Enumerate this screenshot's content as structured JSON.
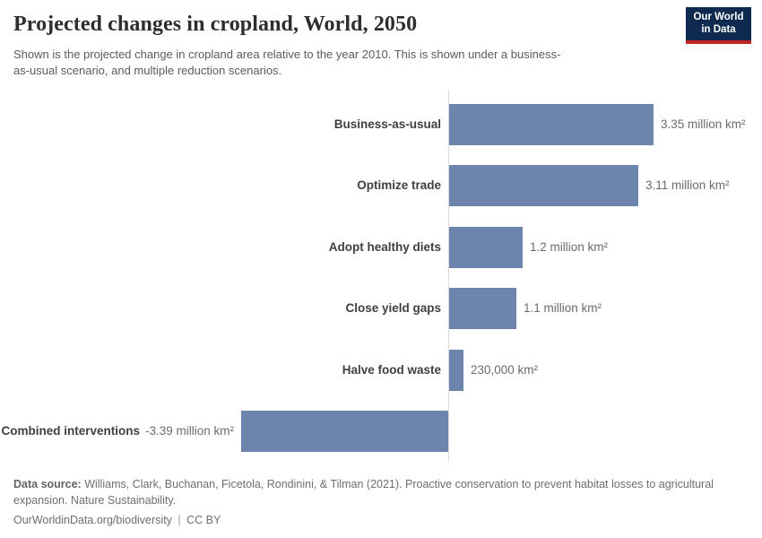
{
  "header": {
    "title": "Projected changes in cropland, World, 2050",
    "subtitle": "Shown is the projected change in cropland area relative to the year 2010. This is shown under a business-as-usual scenario, and multiple reduction scenarios.",
    "logo": {
      "line1": "Our World",
      "line2": "in Data",
      "bg_color": "#0e2a4e",
      "accent_color": "#c0241f"
    }
  },
  "chart_data": {
    "type": "bar",
    "orientation": "horizontal",
    "title": "Projected changes in cropland, World, 2050",
    "unit": "million km²",
    "categories": [
      "Business-as-usual",
      "Optimize trade",
      "Adopt healthy diets",
      "Close yield gaps",
      "Halve food waste",
      "Combined interventions"
    ],
    "values": [
      3.35,
      3.11,
      1.2,
      1.1,
      0.23,
      -3.39
    ],
    "value_labels": [
      "3.35 million km²",
      "3.11 million km²",
      "1.2 million km²",
      "1.1 million km²",
      "230,000 km²",
      "-3.39 million km²"
    ],
    "xlim": [
      -3.4,
      3.4
    ],
    "grid": false,
    "legend": "none",
    "zero_line": true,
    "bar_color": "#6d84ad",
    "axis_color": "#dcdcdc"
  },
  "footer": {
    "datasource_label": "Data source:",
    "datasource_text": " Williams, Clark, Buchanan, Ficetola, Rondinini, & Tilman (2021). Proactive conservation to prevent habitat losses to agricultural expansion. Nature Sustainability.",
    "url": "OurWorldinData.org/biodiversity",
    "separator": "|",
    "license": "CC BY"
  }
}
